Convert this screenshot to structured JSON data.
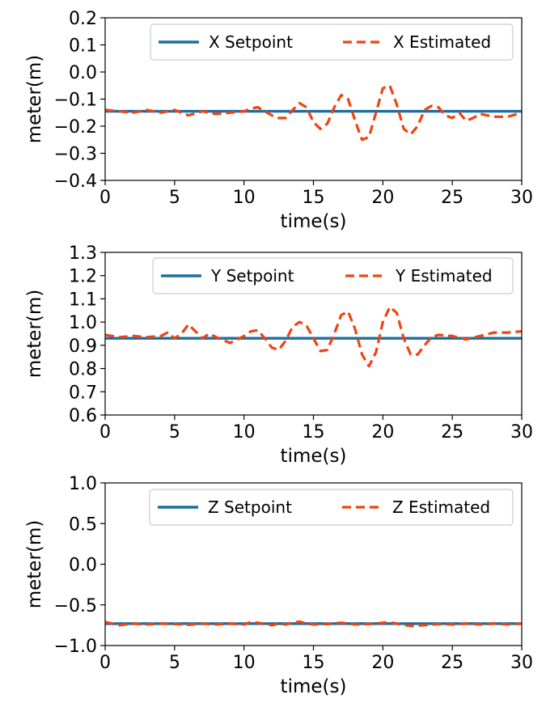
{
  "chart_data": [
    {
      "type": "line",
      "xlabel": "time(s)",
      "ylabel": "meter(m)",
      "xlim": [
        0,
        30
      ],
      "ylim": [
        -0.4,
        0.2
      ],
      "xticks": [
        "0",
        "5",
        "10",
        "15",
        "20",
        "25",
        "30"
      ],
      "yticks": [
        "0.2",
        "0.1",
        "0.0",
        "−0.1",
        "−0.2",
        "−0.3",
        "−0.4"
      ],
      "legend_position": "top-right",
      "grid": false,
      "series": [
        {
          "name": "X Setpoint",
          "style": "solid",
          "color": "#1a6ea0",
          "x": [
            0,
            30
          ],
          "y": [
            -0.145,
            -0.145
          ]
        },
        {
          "name": "X Estimated",
          "style": "dashed",
          "color": "#ee4411",
          "x": [
            0,
            1,
            2,
            3,
            4,
            5,
            5.5,
            6,
            7,
            8,
            9,
            10,
            10.5,
            11,
            11.5,
            12,
            12.5,
            13,
            13.5,
            14,
            14.5,
            15,
            15.5,
            16,
            16.5,
            17,
            17.5,
            18,
            18.5,
            19,
            19.5,
            20,
            20.5,
            21,
            21.5,
            22,
            22.5,
            23,
            23.5,
            24,
            24.5,
            25,
            25.5,
            26,
            26.5,
            27,
            28,
            29,
            30
          ],
          "y": [
            -0.14,
            -0.145,
            -0.15,
            -0.14,
            -0.15,
            -0.14,
            -0.15,
            -0.16,
            -0.145,
            -0.155,
            -0.15,
            -0.145,
            -0.135,
            -0.13,
            -0.145,
            -0.16,
            -0.17,
            -0.17,
            -0.14,
            -0.115,
            -0.13,
            -0.185,
            -0.21,
            -0.19,
            -0.13,
            -0.085,
            -0.1,
            -0.18,
            -0.25,
            -0.24,
            -0.15,
            -0.06,
            -0.05,
            -0.12,
            -0.21,
            -0.23,
            -0.2,
            -0.14,
            -0.125,
            -0.13,
            -0.16,
            -0.17,
            -0.15,
            -0.18,
            -0.17,
            -0.155,
            -0.165,
            -0.165,
            -0.15
          ]
        }
      ]
    },
    {
      "type": "line",
      "xlabel": "time(s)",
      "ylabel": "meter(m)",
      "xlim": [
        0,
        30
      ],
      "ylim": [
        0.6,
        1.3
      ],
      "xticks": [
        "0",
        "5",
        "10",
        "15",
        "20",
        "25",
        "30"
      ],
      "yticks": [
        "1.3",
        "1.2",
        "1.1",
        "1.0",
        "0.9",
        "0.8",
        "0.7",
        "0.6"
      ],
      "legend_position": "top-right",
      "grid": false,
      "series": [
        {
          "name": "Y Setpoint",
          "style": "solid",
          "color": "#1a6ea0",
          "x": [
            0,
            30
          ],
          "y": [
            0.93,
            0.93
          ]
        },
        {
          "name": "Y Estimated",
          "style": "dashed",
          "color": "#ee4411",
          "x": [
            0,
            1,
            2,
            3,
            4,
            4.5,
            5,
            5.5,
            6,
            6.5,
            7,
            7.5,
            8,
            9,
            10,
            10.5,
            11,
            11.5,
            12,
            12.5,
            13,
            13.5,
            14,
            14.5,
            15,
            15.5,
            16,
            16.5,
            17,
            17.5,
            18,
            18.5,
            19,
            19.5,
            20,
            20.5,
            21,
            21.5,
            22,
            22.5,
            23,
            23.5,
            24,
            25,
            26,
            27,
            28,
            29,
            30
          ],
          "y": [
            0.945,
            0.935,
            0.94,
            0.935,
            0.94,
            0.955,
            0.93,
            0.95,
            0.99,
            0.96,
            0.93,
            0.95,
            0.935,
            0.91,
            0.94,
            0.96,
            0.965,
            0.93,
            0.89,
            0.88,
            0.92,
            0.98,
            1.0,
            0.985,
            0.93,
            0.875,
            0.88,
            0.95,
            1.03,
            1.045,
            0.97,
            0.86,
            0.81,
            0.87,
            1.0,
            1.065,
            1.04,
            0.93,
            0.86,
            0.86,
            0.9,
            0.935,
            0.945,
            0.94,
            0.925,
            0.94,
            0.955,
            0.955,
            0.96
          ]
        }
      ]
    },
    {
      "type": "line",
      "xlabel": "time(s)",
      "ylabel": "meter(m)",
      "xlim": [
        0,
        30
      ],
      "ylim": [
        -1.0,
        1.0
      ],
      "xticks": [
        "0",
        "5",
        "10",
        "15",
        "20",
        "25",
        "30"
      ],
      "yticks": [
        "1.0",
        "0.5",
        "0.0",
        "−0.5",
        "−1.0"
      ],
      "legend_position": "top-right",
      "grid": false,
      "series": [
        {
          "name": "Z Setpoint",
          "style": "solid",
          "color": "#1a6ea0",
          "x": [
            0,
            30
          ],
          "y": [
            -0.73,
            -0.73
          ]
        },
        {
          "name": "Z Estimated",
          "style": "dashed",
          "color": "#ee4411",
          "x": [
            0,
            1,
            2,
            3,
            4,
            5,
            6,
            7,
            8,
            9,
            10,
            10.5,
            11,
            12,
            12.5,
            13,
            13.5,
            14,
            14.5,
            15,
            16,
            17,
            18,
            19,
            20,
            20.5,
            21,
            22,
            23,
            24,
            25,
            26,
            27,
            28,
            29,
            30
          ],
          "y": [
            -0.71,
            -0.75,
            -0.73,
            -0.74,
            -0.73,
            -0.735,
            -0.745,
            -0.73,
            -0.74,
            -0.73,
            -0.74,
            -0.71,
            -0.72,
            -0.75,
            -0.73,
            -0.74,
            -0.72,
            -0.705,
            -0.73,
            -0.74,
            -0.735,
            -0.72,
            -0.74,
            -0.735,
            -0.72,
            -0.715,
            -0.73,
            -0.76,
            -0.75,
            -0.735,
            -0.74,
            -0.73,
            -0.74,
            -0.73,
            -0.74,
            -0.73
          ]
        }
      ]
    }
  ],
  "colors": {
    "setpoint": "#1a6ea0",
    "estimated": "#ee4411",
    "axes": "#000000"
  }
}
